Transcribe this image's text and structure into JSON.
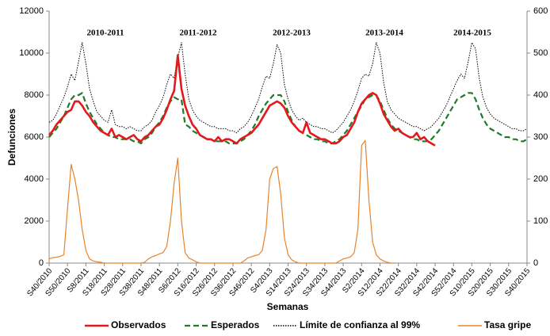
{
  "chart_data": {
    "type": "line",
    "y_label": "Defunciones",
    "x_label": "Semanas",
    "categories": [
      "S40/2010",
      null,
      null,
      null,
      null,
      "S50/2010",
      null,
      null,
      null,
      null,
      "S8/2011",
      null,
      null,
      null,
      null,
      "S18/2011",
      null,
      null,
      null,
      null,
      "S28/2011",
      null,
      null,
      null,
      null,
      "S38/2011",
      null,
      null,
      null,
      null,
      "S48/2011",
      null,
      null,
      null,
      null,
      "S6/2012",
      null,
      null,
      null,
      null,
      "S16/2012",
      null,
      null,
      null,
      null,
      "S26/2012",
      null,
      null,
      null,
      null,
      "S36/2012",
      null,
      null,
      null,
      null,
      "S46/2012",
      null,
      null,
      null,
      null,
      "S4/2013",
      null,
      null,
      null,
      null,
      "S14/2013",
      null,
      null,
      null,
      null,
      "S24/2013",
      null,
      null,
      null,
      null,
      "S34/2013",
      null,
      null,
      null,
      null,
      "S44/2013",
      null,
      null,
      null,
      null,
      "S2/2014",
      null,
      null,
      null,
      null,
      "S12/2014",
      null,
      null,
      null,
      null,
      "S22/2014",
      null,
      null,
      null,
      null,
      "S32/2014",
      null,
      null,
      null,
      null,
      "S42/2014",
      null,
      null,
      null,
      null,
      "S52/2014",
      null,
      null,
      null,
      null,
      "S10/2015",
      null,
      null,
      null,
      null,
      "S20/2015",
      null,
      null,
      null,
      null,
      "S30/2015",
      null,
      null,
      null,
      null,
      "S40/2015"
    ],
    "ylim": [
      0,
      12000
    ],
    "yticks": [
      0,
      2000,
      4000,
      6000,
      8000,
      10000,
      12000
    ],
    "y2lim": [
      0,
      600
    ],
    "y2ticks": [
      0,
      100,
      200,
      300,
      400,
      500,
      600
    ],
    "annotations": [
      "2010-2011",
      "2011-2012",
      "2012-2013",
      "2013-2014",
      "2014-2015"
    ],
    "legend": "bottom",
    "series": [
      {
        "name": "Observados",
        "color": "#e3191c",
        "style": "solid",
        "values": [
          6100,
          6300,
          6600,
          6800,
          7000,
          7200,
          7300,
          7700,
          7700,
          7500,
          7200,
          7000,
          6700,
          6500,
          6300,
          6200,
          6100,
          6400,
          6000,
          6100,
          6000,
          5900,
          6000,
          6100,
          5900,
          5800,
          6000,
          6100,
          6300,
          6500,
          6600,
          6900,
          7300,
          7800,
          8200,
          9900,
          8300,
          7500,
          7000,
          6600,
          6400,
          6100,
          6000,
          5900,
          5900,
          5800,
          6000,
          5800,
          5900,
          5900,
          5800,
          5700,
          5900,
          6000,
          6100,
          6200,
          6400,
          6600,
          6900,
          7200,
          7500,
          7600,
          7700,
          7600,
          7400,
          7000,
          6700,
          6500,
          6300,
          6200,
          6700,
          6200,
          6100,
          6000,
          5900,
          5900,
          5800,
          5700,
          5700,
          5800,
          6000,
          6100,
          6400,
          6700,
          7200,
          7600,
          7800,
          8000,
          8100,
          8000,
          7600,
          7100,
          6800,
          6500,
          6300,
          6400,
          6200,
          6100,
          6000,
          6000,
          6200,
          5900,
          6000,
          5800,
          5700,
          5600,
          null,
          null,
          null,
          null,
          null,
          null,
          null,
          null,
          null,
          null,
          null,
          null,
          null,
          null,
          null,
          null,
          null,
          null,
          null,
          null,
          null,
          null,
          null,
          null,
          null
        ]
      },
      {
        "name": "Esperados",
        "color": "#1e7b2a",
        "style": "dashed",
        "values": [
          6000,
          6200,
          6400,
          6700,
          7000,
          7400,
          7800,
          8000,
          8000,
          8100,
          7600,
          7200,
          6900,
          6600,
          6400,
          6200,
          6100,
          6000,
          6000,
          5900,
          5900,
          5900,
          5900,
          5800,
          5800,
          5700,
          5900,
          6000,
          6200,
          6500,
          6700,
          7000,
          7400,
          7700,
          7900,
          7800,
          7800,
          6600,
          6500,
          6300,
          6200,
          6100,
          6000,
          5900,
          5900,
          5800,
          5800,
          5800,
          5800,
          5700,
          5700,
          5700,
          5800,
          5900,
          6100,
          6300,
          6600,
          7000,
          7300,
          7600,
          7800,
          8000,
          8000,
          8000,
          7700,
          7200,
          6800,
          6500,
          6300,
          6200,
          6100,
          6000,
          5900,
          5900,
          5800,
          5800,
          5700,
          5700,
          5800,
          5900,
          6100,
          6300,
          6600,
          6900,
          7200,
          7500,
          7800,
          7900,
          8000,
          8000,
          7700,
          7300,
          6900,
          6600,
          6400,
          6300,
          6200,
          6100,
          6000,
          5900,
          5900,
          5800,
          5800,
          5800,
          5900,
          6100,
          6300,
          6600,
          6900,
          7200,
          7500,
          7800,
          7900,
          8000,
          8100,
          8100,
          7800,
          7300,
          6900,
          6600,
          6400,
          6300,
          6200,
          6100,
          6000,
          6000,
          5900,
          5900,
          5800,
          5800,
          5900
        ]
      },
      {
        "name": "Límite de confianza al 99%",
        "color": "#000000",
        "style": "dotted",
        "values": [
          6700,
          6800,
          7100,
          7500,
          7900,
          8400,
          9000,
          8700,
          9600,
          10500,
          9500,
          8300,
          7700,
          7200,
          7000,
          6800,
          6700,
          7300,
          6600,
          6500,
          6500,
          6400,
          6500,
          6400,
          6300,
          6300,
          6500,
          6600,
          6800,
          7200,
          7500,
          7900,
          8500,
          9000,
          8800,
          9800,
          10500,
          9000,
          7800,
          7300,
          7000,
          6800,
          6700,
          6600,
          6500,
          6500,
          6400,
          6400,
          6400,
          6300,
          6300,
          6200,
          6400,
          6500,
          6700,
          7000,
          7400,
          7800,
          8400,
          8900,
          8800,
          9500,
          10400,
          10000,
          8500,
          7800,
          7300,
          7000,
          6800,
          6900,
          6700,
          6600,
          6500,
          6500,
          6400,
          6400,
          6300,
          6200,
          6300,
          6500,
          6700,
          7000,
          7300,
          7700,
          8200,
          8800,
          9000,
          8900,
          9500,
          10500,
          10000,
          8600,
          7700,
          7300,
          7100,
          6900,
          6800,
          6700,
          6600,
          6500,
          6500,
          6400,
          6300,
          6400,
          6500,
          6700,
          6900,
          7200,
          7500,
          7900,
          8300,
          8700,
          9000,
          8800,
          9600,
          10500,
          10200,
          8800,
          7900,
          7400,
          7100,
          6900,
          6800,
          6700,
          6600,
          6500,
          6400,
          6400,
          6300,
          6300,
          6400
        ]
      },
      {
        "name": "Tasa gripe",
        "color": "#e8832a",
        "style": "thin",
        "axis": "y2",
        "values": [
          10,
          13,
          14,
          16,
          20,
          130,
          235,
          200,
          150,
          80,
          30,
          10,
          5,
          3,
          2,
          0,
          0,
          0,
          0,
          0,
          0,
          0,
          0,
          0,
          0,
          0,
          2,
          10,
          15,
          18,
          22,
          25,
          40,
          100,
          190,
          250,
          100,
          25,
          12,
          8,
          3,
          0,
          0,
          0,
          0,
          0,
          0,
          0,
          0,
          0,
          0,
          0,
          0,
          5,
          12,
          15,
          18,
          20,
          30,
          80,
          200,
          225,
          230,
          165,
          60,
          20,
          8,
          3,
          0,
          0,
          0,
          0,
          0,
          0,
          0,
          0,
          0,
          0,
          0,
          5,
          10,
          12,
          15,
          25,
          80,
          280,
          292,
          150,
          50,
          20,
          10,
          5,
          2,
          0,
          0,
          null,
          null,
          null,
          null,
          null,
          null,
          null,
          null,
          null,
          null,
          null,
          null,
          null,
          null,
          null,
          null,
          null,
          null,
          null,
          null,
          null,
          null,
          null,
          null,
          null,
          null,
          null,
          null,
          null,
          null,
          null,
          null,
          null,
          null,
          null,
          null
        ]
      }
    ]
  }
}
